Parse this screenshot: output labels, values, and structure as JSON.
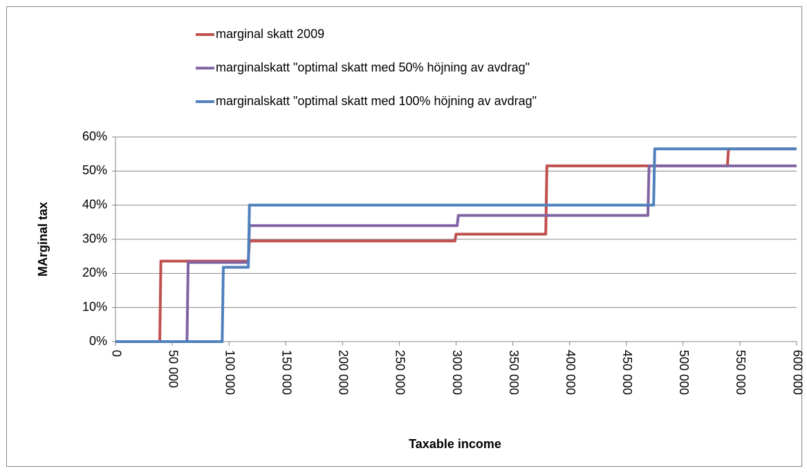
{
  "chart_data": {
    "type": "line",
    "x_label": "Taxable income",
    "y_label": "MArginal tax",
    "xlim": [
      0,
      600000
    ],
    "ylim": [
      0,
      60
    ],
    "xticks": [
      0,
      {
        "value": 50000,
        "label": "50 000"
      },
      {
        "value": 100000,
        "label": "100 000"
      },
      {
        "value": 150000,
        "label": "150 000"
      },
      {
        "value": 200000,
        "label": "200 000"
      },
      {
        "value": 250000,
        "label": "250 000"
      },
      {
        "value": 300000,
        "label": "300 000"
      },
      {
        "value": 350000,
        "label": "350 000"
      },
      {
        "value": 400000,
        "label": "400 000"
      },
      {
        "value": 450000,
        "label": "450 000"
      },
      {
        "value": 500000,
        "label": "500 000"
      },
      {
        "value": 550000,
        "label": "550 000"
      },
      {
        "value": 600000,
        "label": "600 000"
      }
    ],
    "yticks": [
      {
        "value": 0,
        "label": "0%"
      },
      {
        "value": 10,
        "label": "10%"
      },
      {
        "value": 20,
        "label": "20%"
      },
      {
        "value": 30,
        "label": "30%"
      },
      {
        "value": 40,
        "label": "40%"
      },
      {
        "value": 50,
        "label": "50%"
      },
      {
        "value": 60,
        "label": "60%"
      }
    ],
    "grid": true,
    "legend": "top",
    "series": [
      {
        "name": "marginal skatt 2009",
        "color": "#c0504d",
        "x": [
          0,
          39000,
          40000,
          117000,
          118000,
          299000,
          300000,
          379000,
          380000,
          539000,
          540000,
          600000
        ],
        "values": [
          0,
          0,
          23.6,
          23.6,
          29.5,
          29.5,
          31.5,
          31.5,
          51.5,
          51.5,
          56.5,
          56.5
        ]
      },
      {
        "name": "marginalskatt \"optimal skatt med 50% höjning av avdrag\"",
        "color": "#8064a2",
        "x": [
          0,
          63000,
          64000,
          117000,
          118000,
          301000,
          302000,
          469000,
          470000,
          600000
        ],
        "values": [
          0,
          0,
          23.2,
          23.2,
          34,
          34,
          37,
          37,
          51.5,
          51.5
        ]
      },
      {
        "name": "marginalskatt \"optimal skatt med 100% höjning av avdrag\"",
        "color": "#4f81bd",
        "x": [
          0,
          94000,
          95000,
          117000,
          118000,
          474000,
          475000,
          600000
        ],
        "values": [
          0,
          0,
          21.8,
          21.8,
          40,
          40,
          56.5,
          56.5
        ]
      }
    ]
  }
}
